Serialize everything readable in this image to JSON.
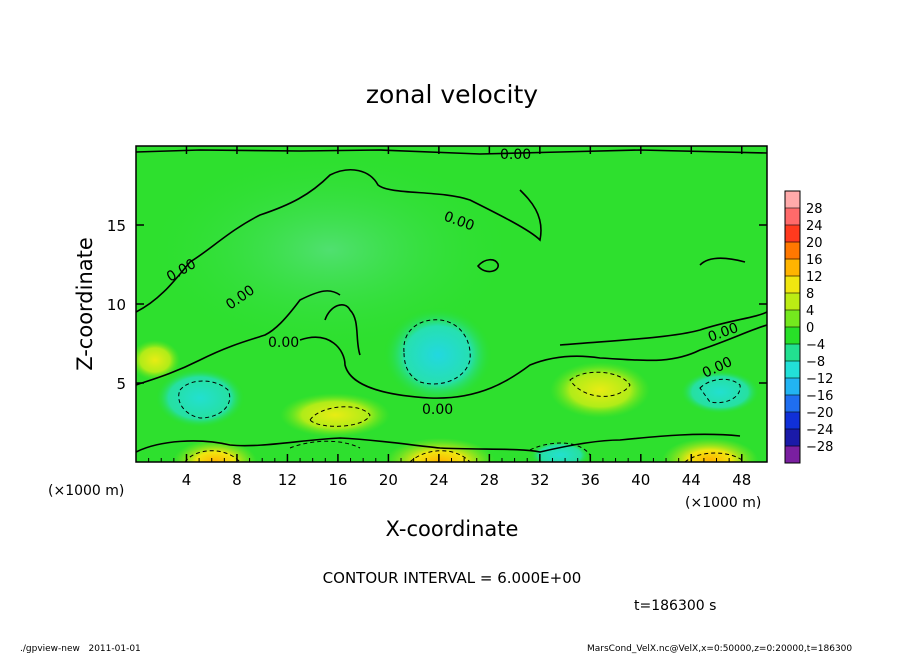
{
  "chart_data": {
    "type": "heatmap",
    "title": "zonal velocity",
    "xlabel": "X-coordinate",
    "ylabel": "Z-coordinate",
    "x_unit_label": "(×1000 m)",
    "y_unit_label": "(×1000 m)",
    "xlim": [
      0,
      50
    ],
    "ylim": [
      0,
      20
    ],
    "x_ticks": [
      4,
      8,
      12,
      16,
      20,
      24,
      28,
      32,
      36,
      40,
      44,
      48
    ],
    "y_ticks": [
      5,
      10,
      15
    ],
    "colorbar": {
      "levels": [
        -28,
        -24,
        -20,
        -16,
        -12,
        -8,
        -4,
        0,
        4,
        8,
        12,
        16,
        20,
        24,
        28
      ],
      "labels": [
        "28",
        "24",
        "20",
        "16",
        "12",
        "8",
        "4",
        "0",
        "−4",
        "−8",
        "−12",
        "−16",
        "−20",
        "−24",
        "−28"
      ],
      "colors": [
        "#7a1fa0",
        "#1a1aa8",
        "#1030d8",
        "#1f6ef0",
        "#22b4f2",
        "#22e0d8",
        "#22e090",
        "#28e028",
        "#74e81e",
        "#bcec14",
        "#f0e610",
        "#ffb400",
        "#ff7800",
        "#ff3a1e",
        "#ff6a6a",
        "#ffaaaa"
      ]
    },
    "contour_labels": [
      "0.00",
      "0.00",
      "0.00",
      "0.00",
      "0.00",
      "0.00",
      "0.00",
      "0.00"
    ],
    "contour_interval_text": "CONTOUR INTERVAL = 6.000E+00",
    "time_text": "t=186300 s"
  },
  "footer": {
    "left": "./gpview-new   2011-01-01",
    "right": "MarsCond_VelX.nc@VelX,x=0:50000,z=0:20000,t=186300"
  }
}
